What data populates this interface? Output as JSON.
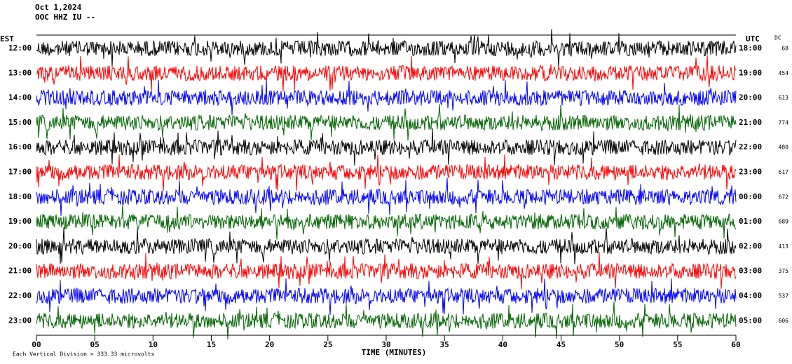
{
  "header": {
    "date": "Oct 1,2024",
    "station": "OOC HHZ IU --"
  },
  "left_axis": {
    "title": "EST",
    "labels": [
      "12:00",
      "13:00",
      "14:00",
      "15:00",
      "16:00",
      "17:00",
      "18:00",
      "19:00",
      "20:00",
      "21:00",
      "22:00",
      "23:00"
    ]
  },
  "right_axis": {
    "title": "UTC",
    "labels": [
      "18:00",
      "19:00",
      "20:00",
      "21:00",
      "22:00",
      "23:00",
      "00:00",
      "01:00",
      "02:00",
      "03:00",
      "04:00",
      "05:00"
    ]
  },
  "dc": {
    "title": "DC",
    "values": [
      68,
      454,
      613,
      774,
      480,
      617,
      672,
      689,
      413,
      375,
      537,
      606
    ]
  },
  "x_axis": {
    "title": "TIME (MINUTES)",
    "ticks": [
      {
        "value": 0,
        "label": "00"
      },
      {
        "value": 5,
        "label": "05"
      },
      10,
      15,
      20,
      25,
      30,
      35,
      40,
      45,
      50,
      55,
      60
    ]
  },
  "footer": "Each Vertical Division =  333.33 microvolts",
  "trace_colors": [
    "#000000",
    "#ff0000",
    "#0000ff",
    "#006400"
  ]
}
